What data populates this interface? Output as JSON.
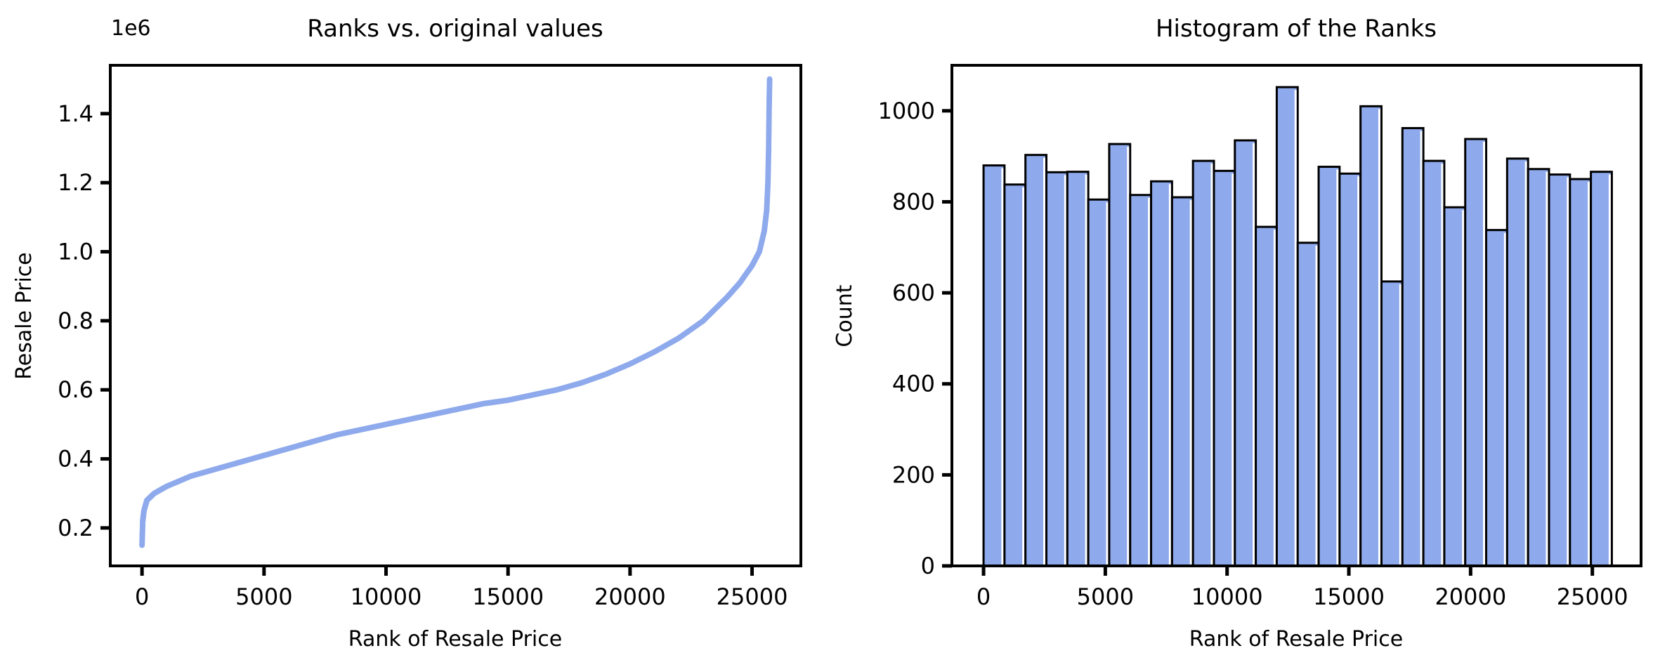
{
  "chart_data": [
    {
      "type": "scatter",
      "title": "Ranks vs. original values",
      "xlabel": "Rank of Resale Price",
      "ylabel": "Resale Price",
      "offset_label": "1e6",
      "xlim": [
        -1300,
        27000
      ],
      "ylim": [
        0.09,
        1.54
      ],
      "xticks": [
        0,
        5000,
        10000,
        15000,
        20000,
        25000
      ],
      "xtick_labels": [
        "0",
        "5000",
        "10000",
        "15000",
        "20000",
        "25000"
      ],
      "yticks": [
        0.2,
        0.4,
        0.6,
        0.8,
        1.0,
        1.2,
        1.4
      ],
      "ytick_labels": [
        "0.2",
        "0.4",
        "0.6",
        "0.8",
        "1.0",
        "1.2",
        "1.4"
      ],
      "grid": false,
      "color": "#8eaaec",
      "points": {
        "x": [
          0,
          30,
          80,
          200,
          500,
          1000,
          2000,
          3000,
          4000,
          5000,
          6000,
          7000,
          8000,
          9000,
          10000,
          11000,
          12000,
          13000,
          14000,
          15000,
          16000,
          17000,
          18000,
          19000,
          20000,
          21000,
          22000,
          23000,
          24000,
          24500,
          25000,
          25300,
          25500,
          25600,
          25650,
          25680,
          25700,
          25720
        ],
        "y": [
          0.15,
          0.22,
          0.25,
          0.28,
          0.3,
          0.32,
          0.35,
          0.37,
          0.39,
          0.41,
          0.43,
          0.45,
          0.47,
          0.485,
          0.5,
          0.515,
          0.53,
          0.545,
          0.56,
          0.57,
          0.585,
          0.6,
          0.62,
          0.645,
          0.675,
          0.71,
          0.75,
          0.8,
          0.87,
          0.91,
          0.96,
          1.0,
          1.06,
          1.12,
          1.2,
          1.3,
          1.42,
          1.5
        ]
      }
    },
    {
      "type": "bar",
      "title": "Histogram of the Ranks",
      "xlabel": "Rank of Resale Price",
      "ylabel": "Count",
      "xlim": [
        -1300,
        27000
      ],
      "ylim": [
        0,
        1100
      ],
      "xticks": [
        0,
        5000,
        10000,
        15000,
        20000,
        25000
      ],
      "xtick_labels": [
        "0",
        "5000",
        "10000",
        "15000",
        "20000",
        "25000"
      ],
      "yticks": [
        0,
        200,
        400,
        600,
        800,
        1000
      ],
      "ytick_labels": [
        "0",
        "200",
        "400",
        "600",
        "800",
        "1000"
      ],
      "grid": false,
      "color": "#8eaaec",
      "bin_range": [
        0,
        25800
      ],
      "values": [
        880,
        838,
        903,
        865,
        866,
        805,
        927,
        815,
        845,
        810,
        890,
        868,
        935,
        745,
        1052,
        710,
        877,
        862,
        1010,
        625,
        962,
        890,
        788,
        938,
        738,
        895,
        872,
        860,
        850,
        866
      ]
    }
  ]
}
